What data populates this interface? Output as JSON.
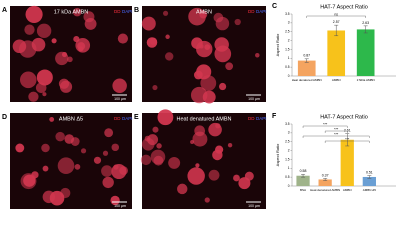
{
  "panels": [
    {
      "letter": "A",
      "title": "17 kDa AMBN",
      "stain1": "DD",
      "stain2": "DAPI",
      "scale": "100 µm"
    },
    {
      "letter": "B",
      "title": "AMBN",
      "stain1": "DD",
      "stain2": "DAPI",
      "scale": "100 µm"
    },
    {
      "letter": "D",
      "title": "AMBN Δ5",
      "stain1": "DD",
      "stain2": "DAPI",
      "scale": "100 µm"
    },
    {
      "letter": "E",
      "title": "Heat denatured AMBN",
      "stain1": "DD",
      "stain2": "DAPI",
      "scale": "100 µm"
    }
  ],
  "chart_data": [
    {
      "letter": "C",
      "type": "bar",
      "title": "HAT-7 Aspect Ratio",
      "y_label": "Aspect Ratio",
      "categories": [
        "Heat denatured AMBN",
        "AMBN",
        "17kDa AMBN"
      ],
      "values": [
        0.87,
        2.57,
        2.63
      ],
      "errors": [
        0.1,
        0.3,
        0.2
      ],
      "colors": [
        "#f4a460",
        "#f7c21b",
        "#2db84b"
      ],
      "ylim": [
        0,
        3.5
      ],
      "yticks": [
        0,
        0.5,
        1,
        1.5,
        2,
        2.5,
        3,
        3.5
      ],
      "annotations": [
        "ns"
      ]
    },
    {
      "letter": "F",
      "type": "bar",
      "title": "HAT-7 Aspect Ratio",
      "y_label": "Aspect Ratio",
      "categories": [
        "BSA",
        "Heat denatured AMBN",
        "AMBN",
        "AMBN Δ5"
      ],
      "values": [
        0.58,
        0.37,
        2.61,
        0.51
      ],
      "errors": [
        0.08,
        0.06,
        0.35,
        0.08
      ],
      "colors": [
        "#9fb38a",
        "#f4a460",
        "#f7c21b",
        "#6a9fd4"
      ],
      "ylim": [
        0,
        3.5
      ],
      "yticks": [
        0,
        0.5,
        1,
        1.5,
        2,
        2.5,
        3,
        3.5
      ],
      "annotations": [
        "***",
        "***",
        "***",
        "***"
      ]
    }
  ]
}
